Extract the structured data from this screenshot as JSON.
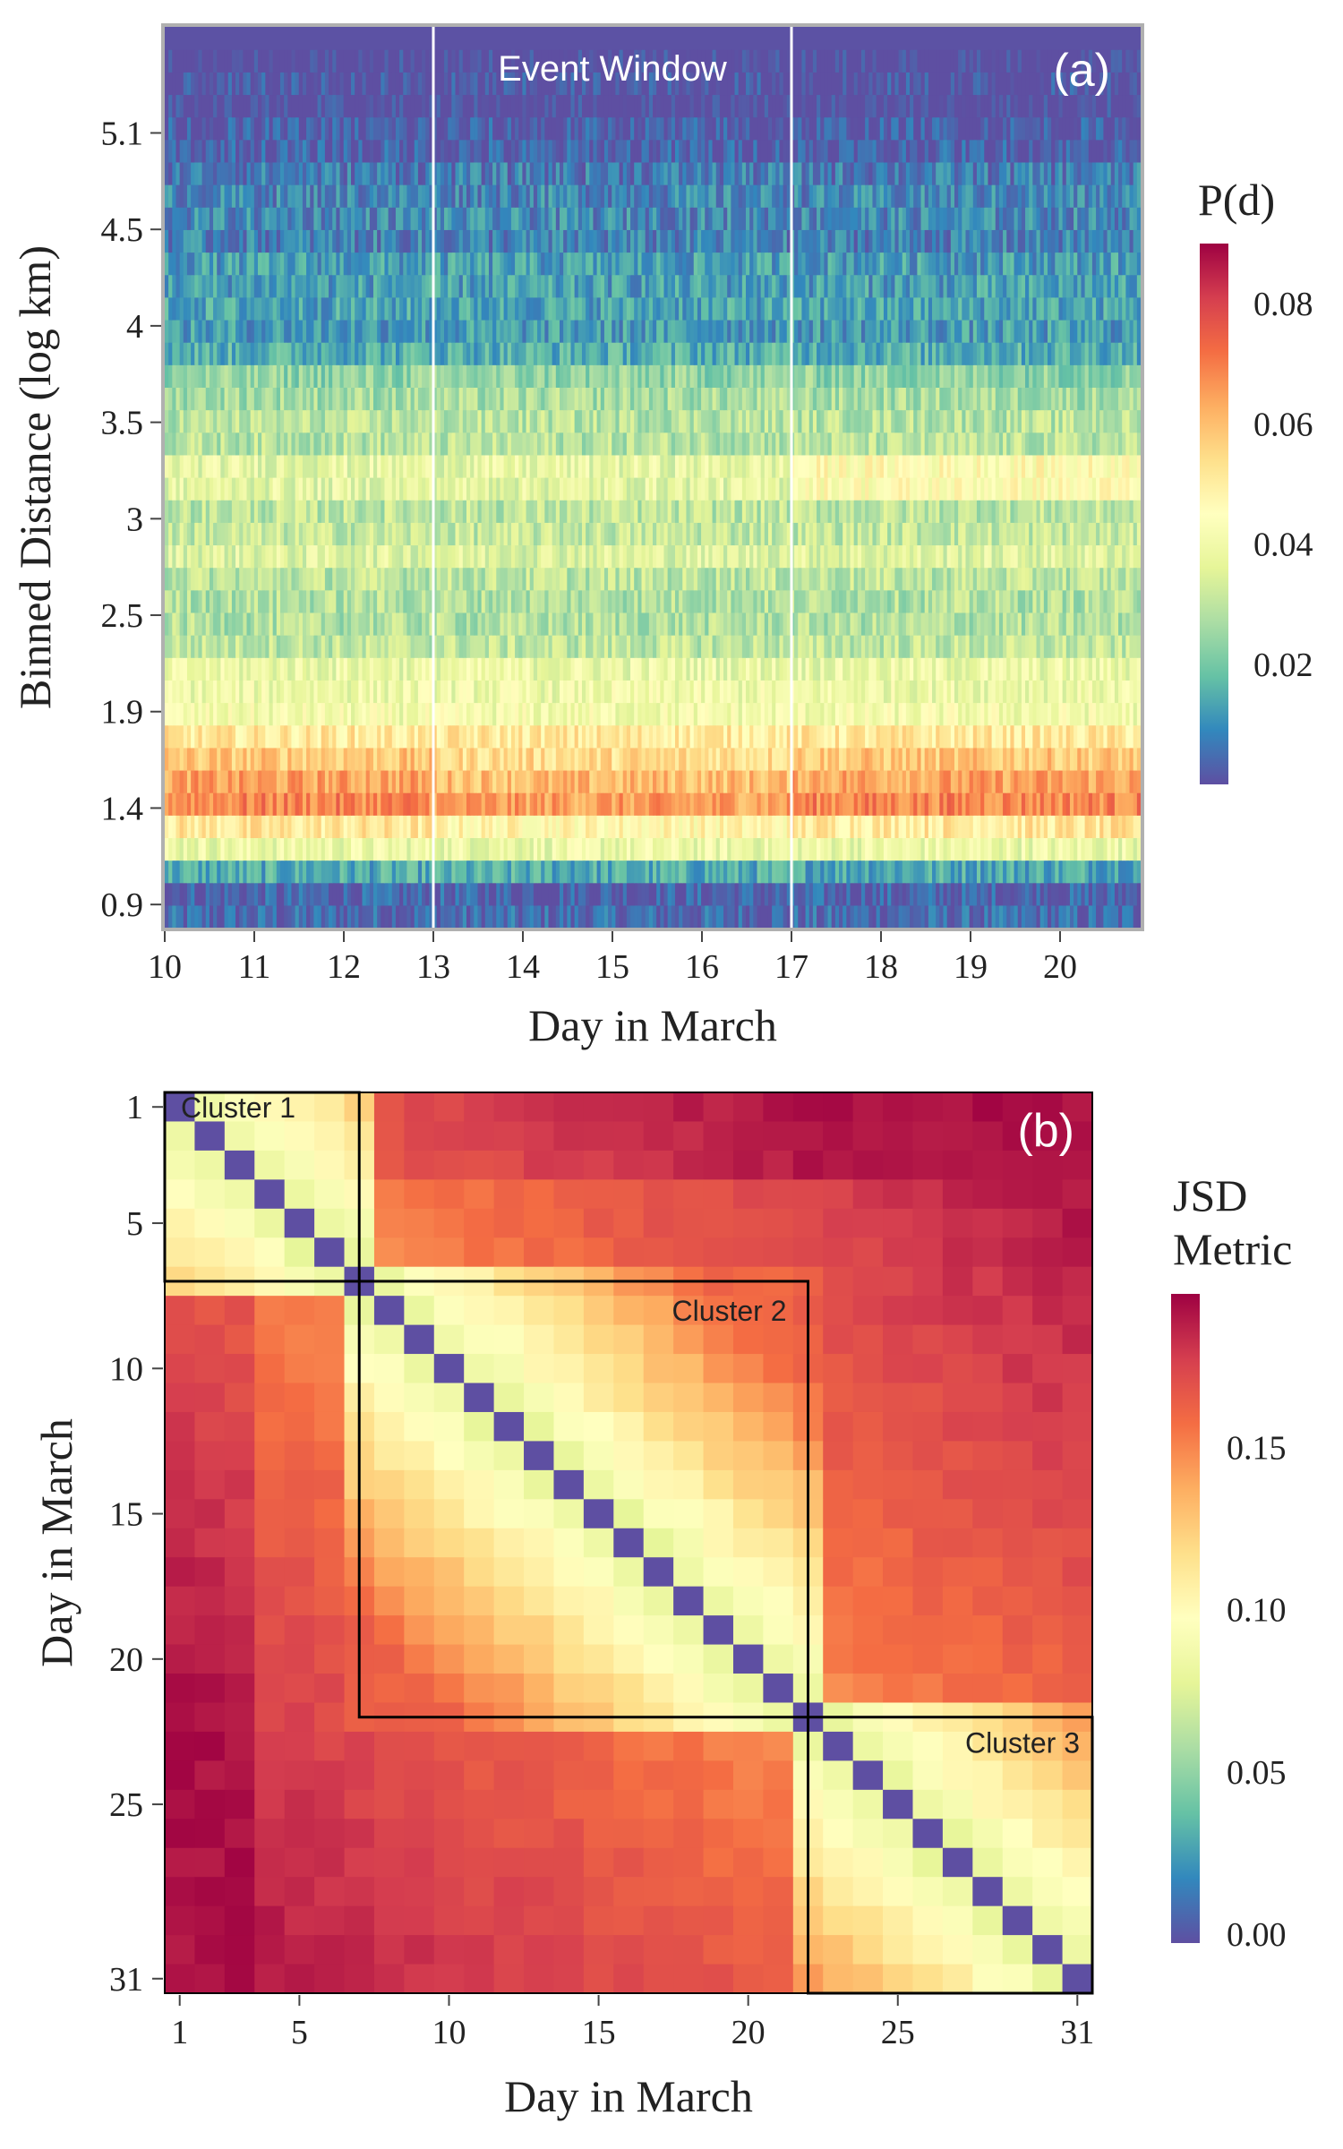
{
  "chart_data": [
    {
      "type": "heatmap",
      "panel_label": "(a)",
      "xlabel": "Day in March",
      "ylabel": "Binned Distance (log km)",
      "xlim": [
        10,
        20.9
      ],
      "ylim": [
        0.78,
        5.45
      ],
      "x_ticks": [
        10,
        11,
        12,
        13,
        14,
        15,
        16,
        17,
        18,
        19,
        20
      ],
      "y_ticks": [
        0.9,
        1.4,
        1.9,
        2.5,
        3,
        3.5,
        4,
        4.5,
        5.1
      ],
      "y_tick_positions": [
        0.9,
        1.4,
        1.9,
        2.4,
        2.9,
        3.4,
        3.9,
        4.4,
        4.9
      ],
      "annotation": "Event Window",
      "event_window": [
        13,
        17
      ],
      "legend_title": "P(d)",
      "colorbar_range": [
        0.0,
        0.09
      ],
      "colorbar_ticks": [
        0.02,
        0.04,
        0.06,
        0.08
      ],
      "colorbar_tick_labels": [
        "0.02",
        "0.04",
        "0.06",
        "0.08"
      ],
      "n_distance_bins": 40,
      "n_time_steps": 262,
      "bin_profile": [
        {
          "bin": 0.84,
          "p": 0.003
        },
        {
          "bin": 0.95,
          "p": 0.006
        },
        {
          "bin": 1.05,
          "p": 0.012
        },
        {
          "bin": 1.15,
          "p": 0.03
        },
        {
          "bin": 1.25,
          "p": 0.048
        },
        {
          "bin": 1.35,
          "p": 0.06
        },
        {
          "bin": 1.45,
          "p": 0.067
        },
        {
          "bin": 1.55,
          "p": 0.062
        },
        {
          "bin": 1.65,
          "p": 0.056
        },
        {
          "bin": 1.75,
          "p": 0.05
        },
        {
          "bin": 1.85,
          "p": 0.045
        },
        {
          "bin": 2.0,
          "p": 0.036
        },
        {
          "bin": 2.4,
          "p": 0.031
        },
        {
          "bin": 2.9,
          "p": 0.033
        },
        {
          "bin": 3.2,
          "p": 0.035
        },
        {
          "bin": 3.4,
          "p": 0.028
        },
        {
          "bin": 3.6,
          "p": 0.022
        },
        {
          "bin": 3.9,
          "p": 0.015
        },
        {
          "bin": 4.2,
          "p": 0.01
        },
        {
          "bin": 4.5,
          "p": 0.006
        },
        {
          "bin": 4.8,
          "p": 0.003
        },
        {
          "bin": 5.1,
          "p": 0.002
        },
        {
          "bin": 5.4,
          "p": 0.0005
        }
      ]
    },
    {
      "type": "heatmap",
      "panel_label": "(b)",
      "xlabel": "Day in March",
      "ylabel": "Day in March",
      "x_ticks": [
        1,
        5,
        10,
        15,
        20,
        25,
        31
      ],
      "y_ticks": [
        1,
        5,
        10,
        15,
        20,
        25,
        31
      ],
      "n_days": 31,
      "legend_title_lines": [
        "JSD",
        "Metric"
      ],
      "colorbar_range": [
        0.0,
        0.2
      ],
      "colorbar_ticks": [
        0.0,
        0.05,
        0.1,
        0.15
      ],
      "colorbar_tick_labels": [
        "0.00",
        "0.05",
        "0.10",
        "0.15"
      ],
      "clusters": [
        {
          "label": "Cluster 1",
          "start_day": 1,
          "end_day": 7
        },
        {
          "label": "Cluster 2",
          "start_day": 7,
          "end_day": 22
        },
        {
          "label": "Cluster 3",
          "start_day": 22,
          "end_day": 31
        }
      ],
      "jsd_model": {
        "diagonal": 0.0,
        "adjacent": 0.085,
        "within_cluster_base": 0.095,
        "within_cluster_per_day": 0.007,
        "within_cluster_max": 0.165,
        "between_cluster_base": 0.15,
        "between_cluster_per_day": 0.0016,
        "between_cluster_max": 0.195
      }
    }
  ]
}
